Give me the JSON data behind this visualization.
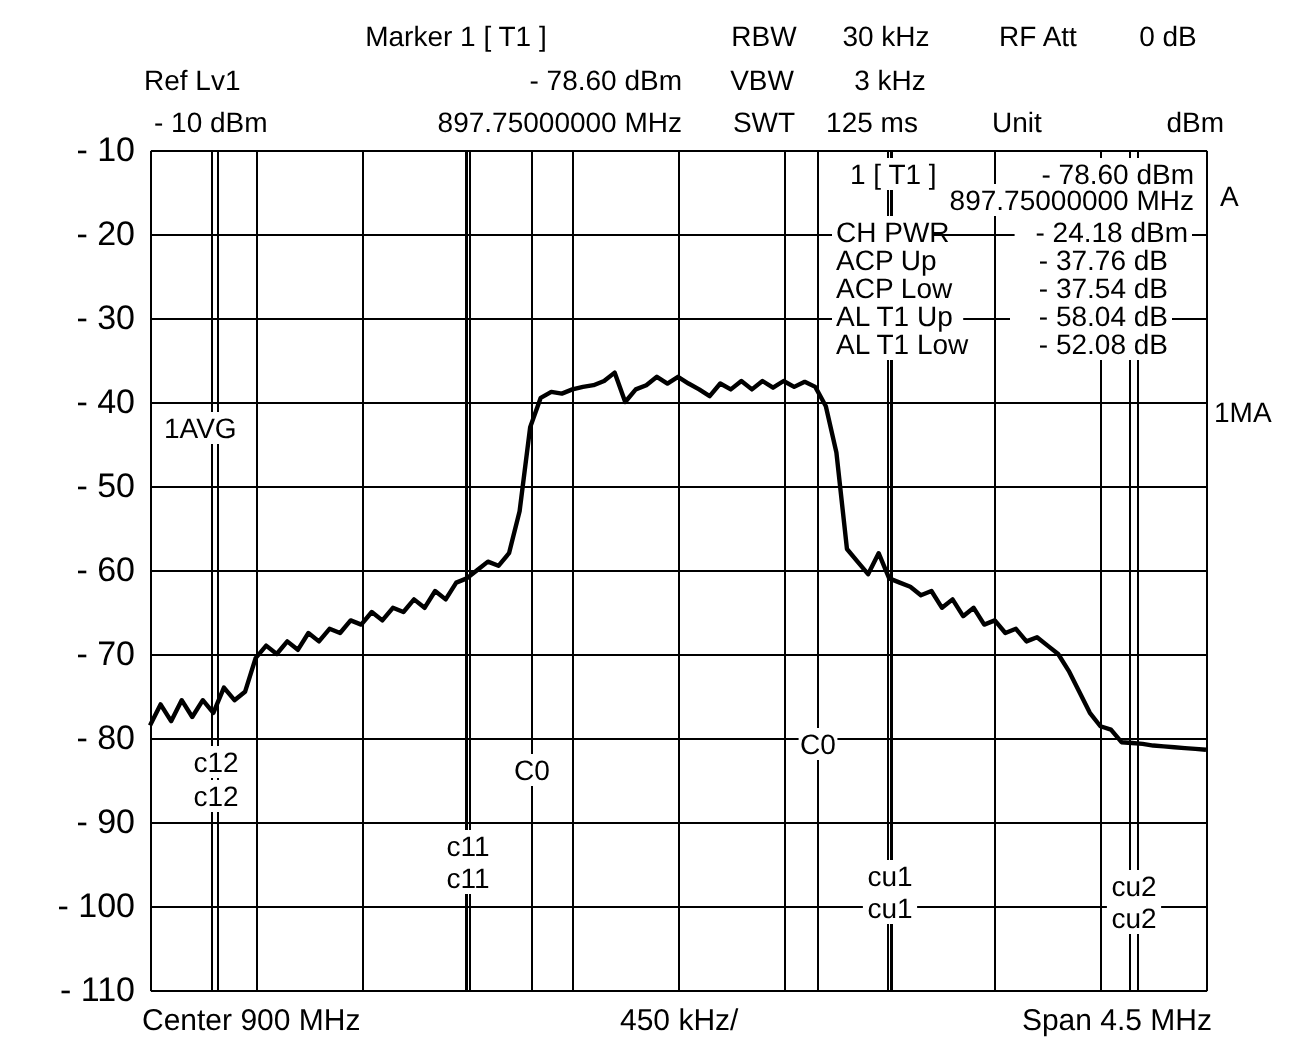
{
  "chart_data": {
    "type": "line",
    "categories": [
      null,
      null,
      null,
      null,
      null,
      null,
      null,
      null,
      null,
      null,
      null,
      null,
      null,
      null,
      null,
      null,
      null,
      null,
      null,
      null,
      null,
      null,
      null,
      null,
      null,
      null,
      null,
      null,
      null,
      null,
      null,
      null,
      null,
      null,
      null,
      null,
      null,
      null,
      null,
      null,
      null,
      null,
      null,
      null,
      null,
      null,
      null,
      null,
      null,
      null,
      null,
      null,
      null,
      null,
      null,
      null,
      null,
      null,
      null,
      null,
      null,
      null,
      null,
      null,
      null,
      null,
      null,
      null,
      null,
      null,
      null,
      null,
      null,
      null,
      null,
      null,
      null,
      null,
      null,
      null,
      null,
      null,
      null,
      null,
      null,
      null,
      null,
      null,
      null,
      null,
      null,
      null,
      null,
      null,
      null,
      null,
      null,
      null,
      null,
      null,
      null
    ],
    "series": [
      {
        "type": "line",
        "color": "#000000",
        "values": [
          -78.5,
          -76,
          -78,
          -75.5,
          -77.5,
          -75.5,
          -77,
          -74,
          -75.5,
          -74.5,
          -70.5,
          -69,
          -70,
          -68.5,
          -69.5,
          -67.5,
          -68.5,
          -67,
          -67.5,
          -66,
          -66.5,
          -65,
          -66,
          -64.5,
          -65,
          -63.5,
          -64.5,
          -62.5,
          -63.5,
          -61.5,
          -61,
          -60,
          -59,
          -59.5,
          -58,
          -53,
          -43,
          -39.5,
          -38.8,
          -39,
          -38.5,
          -38.2,
          -38,
          -37.5,
          -36.5,
          -40,
          -38.5,
          -38,
          -37,
          -37.8,
          -37,
          -37.8,
          -38.5,
          -39.3,
          -37.8,
          -38.5,
          -37.5,
          -38.5,
          -37.5,
          -38.3,
          -37.5,
          -38.2,
          -37.6,
          -38.2,
          -40.5,
          -46,
          -57.5,
          -59,
          -60.5,
          -58,
          -61,
          -61.5,
          -62,
          -63,
          -62.5,
          -64.5,
          -63.5,
          -65.5,
          -64.5,
          -66.5,
          -66,
          -67.5,
          -67,
          -68.5,
          -68,
          -69,
          -70,
          -72,
          -74.5,
          -77,
          -78.6,
          -79,
          -80.5,
          -80.6,
          -80.7,
          -80.9,
          -81,
          -81.1,
          -81.2,
          -81.3,
          -81.4
        ]
      }
    ],
    "ylim": [
      -110,
      -10
    ],
    "yticks": [
      {
        "value": -10,
        "label": "- 10"
      },
      {
        "value": -20,
        "label": "- 20"
      },
      {
        "value": -30,
        "label": "- 30"
      },
      {
        "value": -40,
        "label": "- 40"
      },
      {
        "value": -50,
        "label": "- 50"
      },
      {
        "value": -60,
        "label": "- 60"
      },
      {
        "value": -70,
        "label": "- 70"
      },
      {
        "value": -80,
        "label": "- 80"
      },
      {
        "value": -90,
        "label": "- 90"
      },
      {
        "value": -100,
        "label": "- 100"
      },
      {
        "value": -110,
        "label": "- 110"
      }
    ],
    "tick_labels": "y",
    "grid": true,
    "line_style": "solid",
    "annotations": [
      "Marker 1 [ T1 ]",
      "RBW",
      "30 kHz",
      "RF Att",
      "0 dB",
      "Ref Lv1",
      "- 78.60 dBm",
      "VBW",
      "3 kHz",
      "- 10 dBm",
      "897.75000000 MHz",
      "SWT",
      "125 ms",
      "Unit",
      "dBm",
      "1 [ T1 ]",
      "- 78.60 dBm",
      "897.75000000 MHz",
      "CH PWR",
      "- 24.18 dBm",
      "ACP Up",
      "- 37.76 dB",
      "ACP Low",
      "- 37.54 dB",
      "AL T1 Up",
      "- 58.04 dB",
      "AL T1 Low",
      "- 52.08 dB",
      "A",
      "1MA",
      "1AVG",
      "Center 900 MHz",
      "450 kHz/",
      "Span 4.5 MHz",
      "c12",
      "c12",
      "c11",
      "c11",
      "C0",
      "C0",
      "cu1",
      "cu1",
      "cu2",
      "cu2"
    ]
  }
}
